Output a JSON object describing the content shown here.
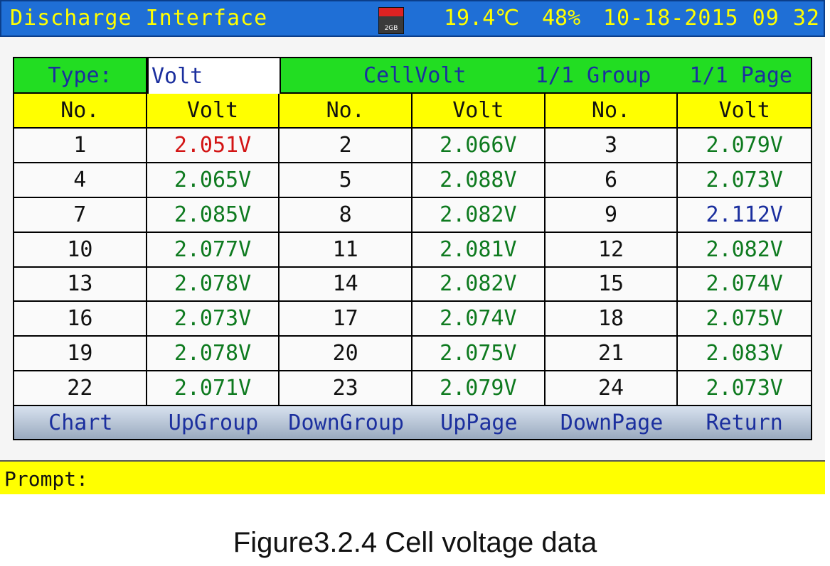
{
  "header": {
    "title": "Discharge Interface",
    "sd_card": "2GB",
    "temperature": "19.4℃",
    "humidity": "48%",
    "datetime": "10-18-2015 09 32"
  },
  "type_row": {
    "label": "Type:",
    "value": "Volt",
    "mode": "CellVolt",
    "group": "1/1 Group",
    "page": "1/1 Page"
  },
  "columns": [
    "No.",
    "Volt",
    "No.",
    "Volt",
    "No.",
    "Volt"
  ],
  "rows": [
    [
      {
        "no": "1",
        "volt": "2.051V",
        "status": "low"
      },
      {
        "no": "2",
        "volt": "2.066V",
        "status": "normal"
      },
      {
        "no": "3",
        "volt": "2.079V",
        "status": "normal"
      }
    ],
    [
      {
        "no": "4",
        "volt": "2.065V",
        "status": "normal"
      },
      {
        "no": "5",
        "volt": "2.088V",
        "status": "normal"
      },
      {
        "no": "6",
        "volt": "2.073V",
        "status": "normal"
      }
    ],
    [
      {
        "no": "7",
        "volt": "2.085V",
        "status": "normal"
      },
      {
        "no": "8",
        "volt": "2.082V",
        "status": "normal"
      },
      {
        "no": "9",
        "volt": "2.112V",
        "status": "high"
      }
    ],
    [
      {
        "no": "10",
        "volt": "2.077V",
        "status": "normal"
      },
      {
        "no": "11",
        "volt": "2.081V",
        "status": "normal"
      },
      {
        "no": "12",
        "volt": "2.082V",
        "status": "normal"
      }
    ],
    [
      {
        "no": "13",
        "volt": "2.078V",
        "status": "normal"
      },
      {
        "no": "14",
        "volt": "2.082V",
        "status": "normal"
      },
      {
        "no": "15",
        "volt": "2.074V",
        "status": "normal"
      }
    ],
    [
      {
        "no": "16",
        "volt": "2.073V",
        "status": "normal"
      },
      {
        "no": "17",
        "volt": "2.074V",
        "status": "normal"
      },
      {
        "no": "18",
        "volt": "2.075V",
        "status": "normal"
      }
    ],
    [
      {
        "no": "19",
        "volt": "2.078V",
        "status": "normal"
      },
      {
        "no": "20",
        "volt": "2.075V",
        "status": "normal"
      },
      {
        "no": "21",
        "volt": "2.083V",
        "status": "normal"
      }
    ],
    [
      {
        "no": "22",
        "volt": "2.071V",
        "status": "normal"
      },
      {
        "no": "23",
        "volt": "2.079V",
        "status": "normal"
      },
      {
        "no": "24",
        "volt": "2.073V",
        "status": "normal"
      }
    ]
  ],
  "status_colors": {
    "normal": "#0e7a1f",
    "low": "#d31414",
    "high": "#1b2f9e"
  },
  "buttons": [
    "Chart",
    "UpGroup",
    "DownGroup",
    "UpPage",
    "DownPage",
    "Return"
  ],
  "prompt": {
    "label": "Prompt:"
  },
  "caption": "Figure3.2.4 Cell voltage data"
}
